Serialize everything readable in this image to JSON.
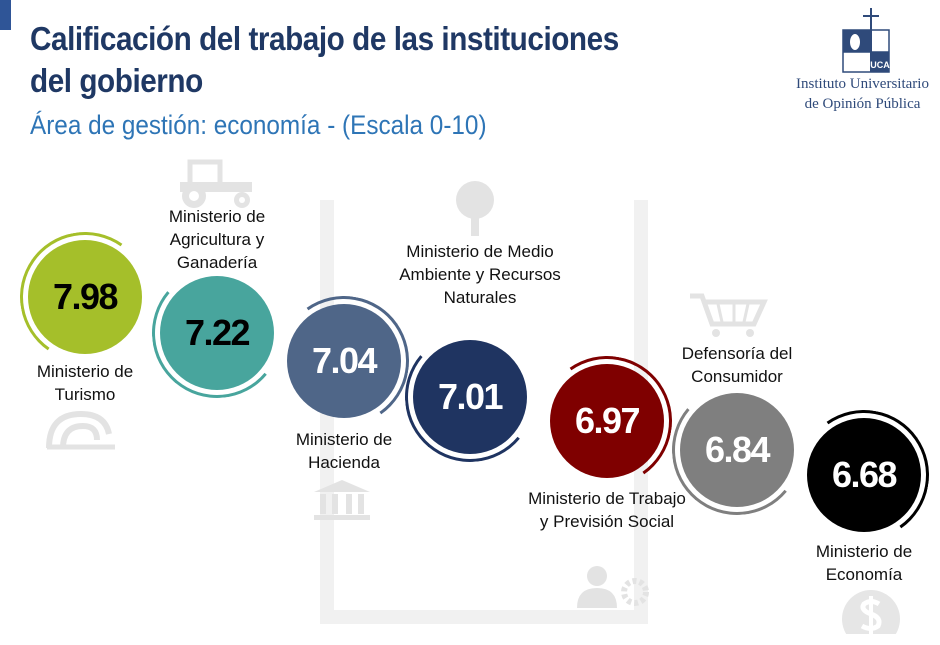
{
  "header": {
    "title_line1": "Calificación del trabajo de las instituciones",
    "title_line2": "del gobierno",
    "subtitle": "Área de gestión: economía - (Escala 0-10)"
  },
  "logo": {
    "line1": "Instituto Universitario",
    "line2": "de Opinión Pública",
    "mark": "UCA"
  },
  "chart_data": {
    "type": "bar",
    "title": "Calificación del trabajo de las instituciones del gobierno",
    "subtitle": "Área de gestión: economía - (Escala 0-10)",
    "ylim": [
      0,
      10
    ],
    "items": [
      {
        "name": "Ministerio de Turismo",
        "value": 7.98,
        "display": "7.98",
        "color": "#a5bf2a",
        "text_color": "#000000",
        "icon": "wave-icon"
      },
      {
        "name": "Ministerio de Agricultura y Ganadería",
        "value": 7.22,
        "display": "7.22",
        "color": "#48a59d",
        "text_color": "#000000",
        "icon": "tractor-icon"
      },
      {
        "name": "Ministerio de Hacienda",
        "value": 7.04,
        "display": "7.04",
        "color": "#4f6688",
        "text_color": "#ffffff",
        "icon": "bank-icon"
      },
      {
        "name": "Ministerio de Medio Ambiente y Recursos Naturales",
        "value": 7.01,
        "display": "7.01",
        "color": "#1f3461",
        "text_color": "#ffffff",
        "icon": "tree-icon"
      },
      {
        "name": "Ministerio de Trabajo y Previsión Social",
        "value": 6.97,
        "display": "6.97",
        "color": "#7f0000",
        "text_color": "#ffffff",
        "icon": "worker-gear-icon"
      },
      {
        "name": "Defensoría del Consumidor",
        "value": 6.84,
        "display": "6.84",
        "color": "#7f7f7f",
        "text_color": "#ffffff",
        "icon": "cart-icon"
      },
      {
        "name": "Ministerio de Economía",
        "value": 6.68,
        "display": "6.68",
        "color": "#000000",
        "text_color": "#ffffff",
        "icon": "dollar-icon"
      }
    ]
  }
}
